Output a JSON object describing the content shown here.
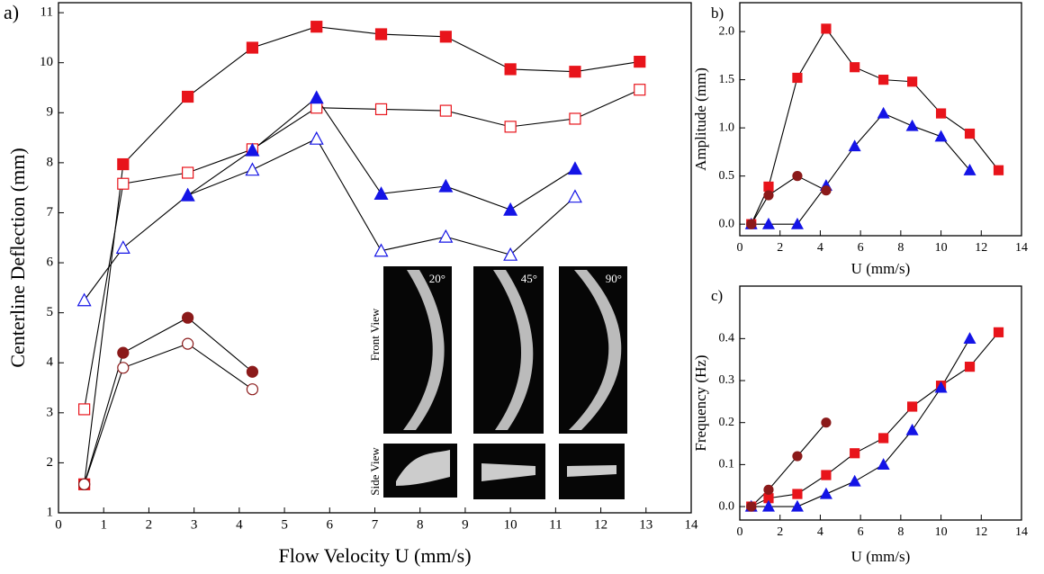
{
  "chart_data": [
    {
      "type": "line",
      "panel_label": "a)",
      "xlabel": "Flow Velocity U (mm/s)",
      "ylabel": "Centerline Deflection (mm)",
      "xlim": [
        0,
        14
      ],
      "ylim": [
        1,
        11.2
      ],
      "xticks": [
        0,
        1,
        2,
        3,
        4,
        5,
        6,
        7,
        8,
        9,
        10,
        11,
        12,
        13,
        14
      ],
      "yticks": [
        1,
        2,
        3,
        4,
        5,
        6,
        7,
        8,
        9,
        10,
        11
      ],
      "x": [
        0.57,
        1.43,
        2.86,
        4.29,
        5.71,
        7.14,
        8.57,
        10,
        11.43,
        12.86
      ],
      "series": [
        {
          "color": "#e8141b",
          "marker": "square",
          "filled": false,
          "values": [
            3.07,
            7.58,
            7.8,
            8.27,
            9.1,
            9.07,
            9.04,
            8.72,
            8.88,
            9.46
          ]
        },
        {
          "color": "#e8141b",
          "marker": "square",
          "filled": true,
          "values": [
            1.57,
            7.97,
            9.32,
            10.3,
            10.72,
            10.57,
            10.52,
            9.87,
            9.82,
            10.02
          ]
        },
        {
          "color": "#1414e6",
          "marker": "triangle",
          "filled": false,
          "values": [
            5.25,
            6.3,
            7.35,
            7.86,
            8.48,
            6.24,
            6.52,
            6.16,
            7.32,
            null
          ]
        },
        {
          "color": "#1414e6",
          "marker": "triangle",
          "filled": true,
          "values": [
            null,
            null,
            7.35,
            8.25,
            9.3,
            7.38,
            7.53,
            7.06,
            7.88,
            null
          ]
        },
        {
          "color": "#8b1a1a",
          "marker": "circle",
          "filled": true,
          "values": [
            1.57,
            4.2,
            4.9,
            3.82,
            null,
            null,
            null,
            null,
            null,
            null
          ]
        },
        {
          "color": "#8b1a1a",
          "marker": "circle",
          "filled": false,
          "values": [
            1.57,
            3.9,
            4.38,
            3.47,
            null,
            null,
            null,
            null,
            null,
            null
          ]
        }
      ]
    },
    {
      "type": "line",
      "panel_label": "b)",
      "xlabel": "U (mm/s)",
      "ylabel": "Amplitude (mm)",
      "xlim": [
        0,
        14
      ],
      "ylim": [
        -0.12,
        2.3
      ],
      "xticks": [
        0,
        2,
        4,
        6,
        8,
        10,
        12,
        14
      ],
      "yticks": [
        {
          "value": 0,
          "label": "0.0"
        },
        {
          "value": 0.5,
          "label": "0.5"
        },
        {
          "value": 1,
          "label": "1.0"
        },
        {
          "value": 1.5,
          "label": "1.5"
        },
        {
          "value": 2,
          "label": "2.0"
        }
      ],
      "x": [
        0.57,
        1.43,
        2.86,
        4.29,
        5.71,
        7.14,
        8.57,
        10,
        11.43,
        12.86
      ],
      "series": [
        {
          "color": "#e8141b",
          "marker": "square",
          "filled": true,
          "values": [
            0,
            0.39,
            1.52,
            2.03,
            1.63,
            1.5,
            1.48,
            1.15,
            0.94,
            0.56
          ]
        },
        {
          "color": "#1414e6",
          "marker": "triangle",
          "filled": true,
          "values": [
            0,
            0,
            0,
            0.4,
            0.81,
            1.15,
            1.02,
            0.91,
            0.56,
            null
          ]
        },
        {
          "color": "#8b1a1a",
          "marker": "circle",
          "filled": true,
          "values": [
            0,
            0.3,
            0.5,
            0.35,
            null,
            null,
            null,
            null,
            null,
            null
          ]
        }
      ]
    },
    {
      "type": "line",
      "panel_label": "c)",
      "xlabel": "U (mm/s)",
      "ylabel": "Frequency (Hz)",
      "xlim": [
        0,
        14
      ],
      "ylim": [
        -0.032,
        0.525
      ],
      "xticks": [
        0,
        2,
        4,
        6,
        8,
        10,
        12,
        14
      ],
      "yticks": [
        {
          "value": 0,
          "label": "0.0"
        },
        {
          "value": 0.1,
          "label": "0.1"
        },
        {
          "value": 0.2,
          "label": "0.2"
        },
        {
          "value": 0.3,
          "label": "0.3"
        },
        {
          "value": 0.4,
          "label": "0.4"
        }
      ],
      "x": [
        0.57,
        1.43,
        2.86,
        4.29,
        5.71,
        7.14,
        8.57,
        10,
        11.43,
        12.86
      ],
      "series": [
        {
          "color": "#e8141b",
          "marker": "square",
          "filled": true,
          "values": [
            0,
            0.02,
            0.03,
            0.075,
            0.127,
            0.163,
            0.238,
            0.288,
            0.333,
            0.415
          ]
        },
        {
          "color": "#1414e6",
          "marker": "triangle",
          "filled": true,
          "values": [
            0,
            0,
            0,
            0.03,
            0.06,
            0.1,
            0.182,
            0.283,
            0.4,
            null
          ]
        },
        {
          "color": "#8b1a1a",
          "marker": "circle",
          "filled": true,
          "values": [
            0,
            0.04,
            0.12,
            0.2,
            null,
            null,
            null,
            null,
            null,
            null
          ]
        }
      ]
    }
  ],
  "insets": {
    "row_labels": [
      "Front View",
      "Side View"
    ],
    "angles": [
      "20°",
      "45°",
      "90°"
    ]
  }
}
